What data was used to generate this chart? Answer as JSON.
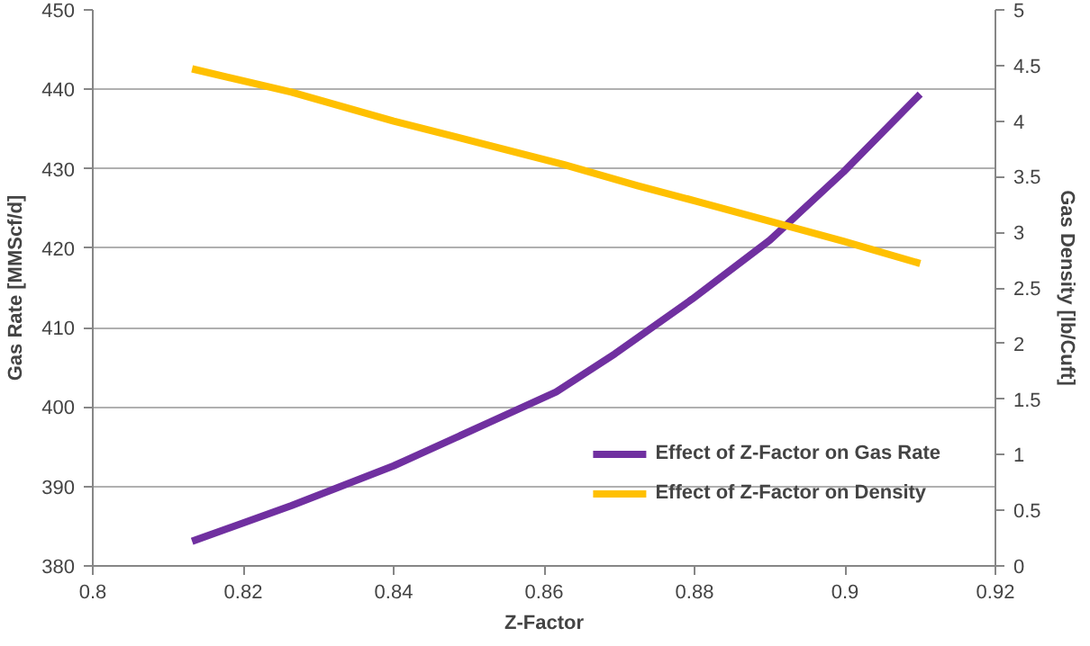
{
  "chart_data": {
    "type": "line",
    "xlabel": "Z-Factor",
    "ylabel": "Gas Rate [MMScf/d]",
    "y2label": "Gas Density [lb/Cuft]",
    "xlim": [
      0.8,
      0.92
    ],
    "xticks": [
      {
        "value": 0.8,
        "label": "0.8"
      },
      0.82,
      0.84,
      0.86,
      0.88,
      {
        "value": 0.9,
        "label": "0.9"
      },
      0.92
    ],
    "ylim": [
      380,
      450
    ],
    "yticks": [
      380,
      390,
      400,
      410,
      420,
      430,
      440,
      450
    ],
    "y2lim": [
      0,
      5
    ],
    "y2ticks": [
      0,
      0.5,
      1,
      1.5,
      2,
      2.5,
      3,
      3.5,
      4,
      4.5,
      5
    ],
    "grid": "y",
    "legend": "bottom right",
    "marker": "none",
    "line_style": "solid",
    "series": [
      {
        "name": "Effect of Z-Factor on Gas Rate",
        "color": "#7030a0",
        "x": [
          0.8132,
          0.8264,
          0.84,
          0.8528,
          0.8616,
          0.8694,
          0.8797,
          0.89,
          0.8998,
          0.91
        ],
        "values": [
          383.1,
          387.6,
          392.6,
          398.1,
          401.9,
          406.7,
          413.6,
          421,
          429.6,
          439.4
        ]
      },
      {
        "name": "Effect of Z-Factor on Density",
        "color": "#ffc000",
        "axis": "y2",
        "x": [
          0.8132,
          0.8264,
          0.84,
          0.8528,
          0.8626,
          0.8724,
          0.8802,
          0.89,
          0.8998,
          0.91
        ],
        "values": [
          4.47,
          4.26,
          4.0,
          3.78,
          3.61,
          3.42,
          3.28,
          3.1,
          2.92,
          2.72
        ]
      }
    ]
  }
}
